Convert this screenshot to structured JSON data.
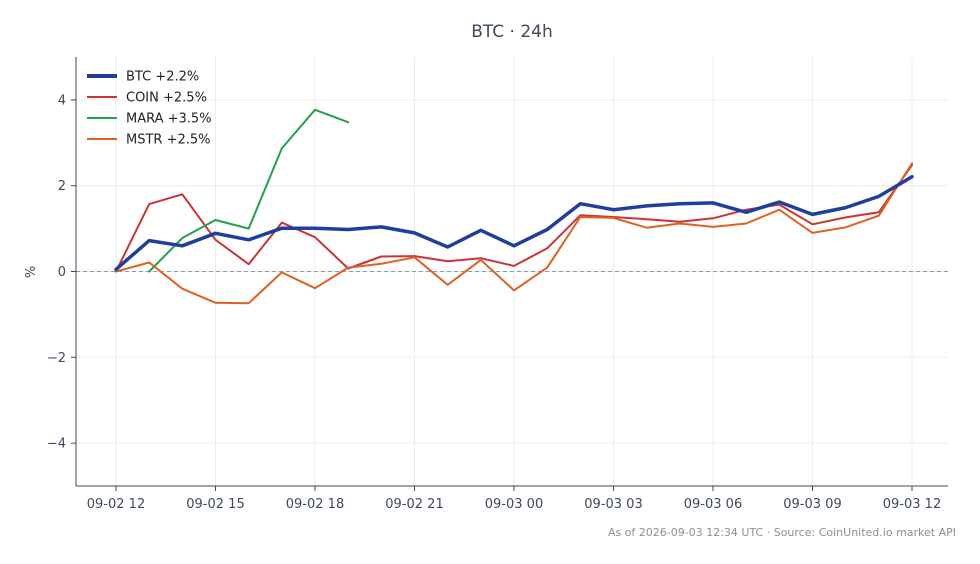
{
  "chart_data": {
    "type": "line",
    "title": "BTC · 24h",
    "xlabel": "",
    "ylabel": "%",
    "x": [
      "09-02 12",
      "09-02 13",
      "09-02 14",
      "09-02 15",
      "09-02 16",
      "09-02 17",
      "09-02 18",
      "09-02 19",
      "09-02 20",
      "09-02 21",
      "09-02 22",
      "09-02 23",
      "09-03 00",
      "09-03 01",
      "09-03 02",
      "09-03 03",
      "09-03 04",
      "09-03 05",
      "09-03 06",
      "09-03 07",
      "09-03 08",
      "09-03 09",
      "09-03 10",
      "09-03 11",
      "09-03 12"
    ],
    "x_ticks": [
      "09-02 12",
      "09-02 15",
      "09-02 18",
      "09-02 21",
      "09-03 00",
      "09-03 03",
      "09-03 06",
      "09-03 09",
      "09-03 12"
    ],
    "ylim": [
      -5,
      5
    ],
    "y_ticks": [
      -4,
      -2,
      0,
      2,
      4
    ],
    "y_tick_labels": [
      "−4",
      "−2",
      "0",
      "2",
      "4"
    ],
    "grid": true,
    "zero_line": true,
    "legend_position": "top-left",
    "series": [
      {
        "name": "BTC +2.2%",
        "color": "#1f3f9e",
        "emphasis": true,
        "values": [
          0.05,
          0.72,
          0.6,
          0.89,
          0.74,
          1.01,
          1.01,
          0.98,
          1.04,
          0.9,
          0.57,
          0.96,
          0.6,
          0.98,
          1.58,
          1.44,
          1.53,
          1.58,
          1.6,
          1.38,
          1.62,
          1.33,
          1.49,
          1.75,
          2.21
        ]
      },
      {
        "name": "COIN +2.5%",
        "color": "#cc3333",
        "emphasis": false,
        "values": [
          0.0,
          1.57,
          1.8,
          0.74,
          0.17,
          1.14,
          0.8,
          0.07,
          0.35,
          0.36,
          0.24,
          0.31,
          0.13,
          0.54,
          1.31,
          1.27,
          1.22,
          1.16,
          1.24,
          1.44,
          1.56,
          1.1,
          1.26,
          1.38,
          2.48
        ]
      },
      {
        "name": "MARA +3.5%",
        "color": "#22a04b",
        "emphasis": false,
        "values": [
          null,
          0.0,
          0.78,
          1.2,
          1.0,
          2.87,
          3.77,
          3.48,
          null,
          null,
          null,
          null,
          null,
          null,
          null,
          null,
          null,
          null,
          null,
          null,
          null,
          null,
          null,
          null,
          null
        ]
      },
      {
        "name": "MSTR +2.5%",
        "color": "#e06020",
        "emphasis": false,
        "values": [
          0.0,
          0.21,
          -0.4,
          -0.73,
          -0.74,
          -0.02,
          -0.39,
          0.09,
          0.18,
          0.33,
          -0.31,
          0.27,
          -0.44,
          0.09,
          1.27,
          1.25,
          1.02,
          1.12,
          1.04,
          1.12,
          1.44,
          0.9,
          1.03,
          1.3,
          2.52
        ]
      }
    ]
  },
  "footer": "As of 2026-09-03 12:34 UTC · Source: CoinUnited.io market API"
}
